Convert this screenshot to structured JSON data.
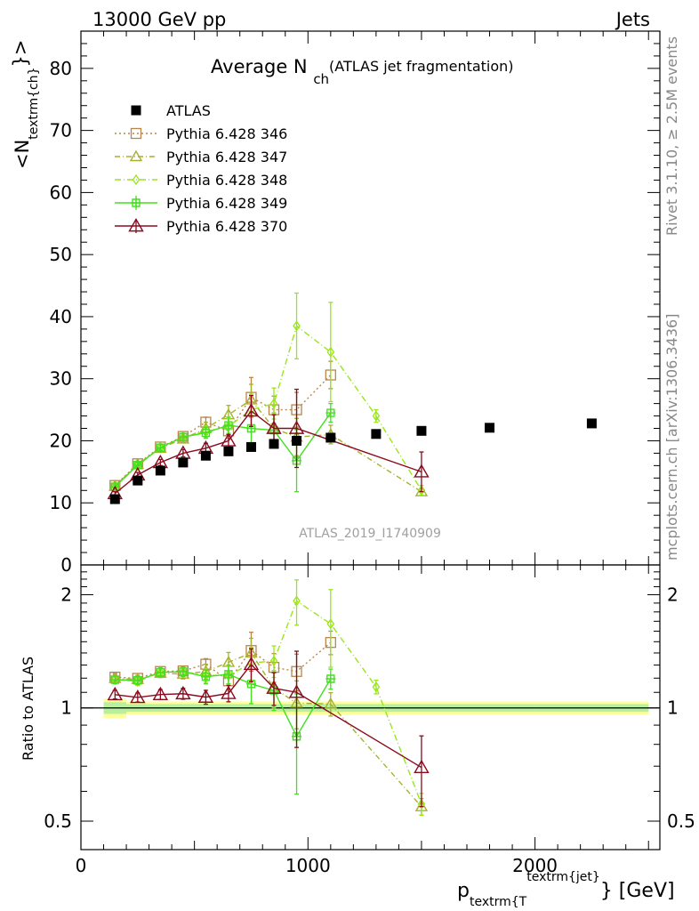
{
  "header": {
    "energy_label": "13000 GeV pp",
    "category_label": "Jets",
    "right_label_top": "Rivet 3.1.10, ≥ 2.5M events",
    "right_label_bottom": "mcplots.cern.ch [arXiv:1306.3436]",
    "analysis_id": "ATLAS_2019_I1740909"
  },
  "chart_data": {
    "type": "scatter",
    "title_main": "Average N",
    "title_sub": "ch",
    "title_note": "(ATLAS jet fragmentation)",
    "ylabel_main": "<N",
    "ylabel_sub": "textrm{ch}",
    "ylabel_end": "}>",
    "xlabel_main": "p",
    "xlabel_sub": "textrm{T",
    "xlabel_sup": "textrm{jet}",
    "xlabel_end": "} [GeV]",
    "ratio_ylabel": "Ratio to ATLAS",
    "xlim": [
      0,
      2550
    ],
    "ylim_top": [
      0,
      86
    ],
    "ylim_ratio": [
      0.42,
      2.4
    ],
    "ratio_log": true,
    "x_ticks": [
      0,
      1000,
      2000
    ],
    "y_ticks_top": [
      0,
      10,
      20,
      30,
      40,
      50,
      60,
      70,
      80
    ],
    "y_ticks_ratio": [
      0.5,
      1,
      2
    ],
    "x": [
      150,
      250,
      350,
      450,
      550,
      650,
      750,
      850,
      950,
      1100,
      1300,
      1500,
      1800,
      2250
    ],
    "data": {
      "name": "ATLAS",
      "color": "#000000",
      "values": [
        10.6,
        13.6,
        15.2,
        16.5,
        17.6,
        18.3,
        19.0,
        19.5,
        20.0,
        20.5,
        21.1,
        21.6,
        22.1,
        22.8
      ]
    },
    "ratio_band": [
      {
        "x0": 100,
        "x1": 200,
        "halfwidth": 0.06
      },
      {
        "x0": 200,
        "x1": 2000,
        "halfwidth": 0.04
      },
      {
        "x0": 2000,
        "x1": 2500,
        "halfwidth": 0.04
      }
    ],
    "series": [
      {
        "name": "Pythia 6.428 346",
        "color": "#b8864b",
        "marker": "square",
        "dash": "2,3",
        "x": [
          150,
          250,
          350,
          450,
          550,
          650,
          750,
          850,
          950,
          1100
        ],
        "values": [
          12.8,
          16.3,
          19.0,
          20.7,
          23.0,
          21.6,
          27.0,
          25.0,
          25.0,
          30.6
        ],
        "errors": [
          0.3,
          0.3,
          0.4,
          0.5,
          0.8,
          1.2,
          3.2,
          2.2,
          2.8,
          2.2
        ]
      },
      {
        "name": "Pythia 6.428 347",
        "color": "#a8b030",
        "marker": "triangle",
        "dash": "6,3,1,3",
        "x": [
          150,
          250,
          350,
          450,
          550,
          650,
          750,
          850,
          950,
          1100,
          1500
        ],
        "values": [
          12.7,
          16.2,
          18.8,
          20.3,
          22.0,
          24.2,
          26.6,
          22.0,
          20.6,
          21.0,
          11.8
        ],
        "errors": [
          0.3,
          0.4,
          0.5,
          0.6,
          1.0,
          1.5,
          2.5,
          2.5,
          3.0,
          1.5,
          0.6
        ]
      },
      {
        "name": "Pythia 6.428 348",
        "color": "#99e619",
        "marker": "diamond",
        "dash": "7,3,1,3",
        "x": [
          150,
          250,
          350,
          450,
          550,
          650,
          750,
          850,
          950,
          1100,
          1300,
          1500
        ],
        "values": [
          12.6,
          16.0,
          18.9,
          20.6,
          21.5,
          22.3,
          25.0,
          26.0,
          38.5,
          34.3,
          24.0,
          12.0
        ],
        "errors": [
          0.3,
          0.4,
          0.5,
          0.6,
          0.9,
          1.3,
          2.5,
          2.5,
          5.3,
          8.0,
          1.0,
          0.8
        ]
      },
      {
        "name": "Pythia 6.428 349",
        "color": "#44e020",
        "marker": "cross",
        "dash": "",
        "x": [
          150,
          250,
          350,
          450,
          550,
          650,
          750,
          850,
          950,
          1100
        ],
        "values": [
          12.6,
          16.1,
          18.9,
          20.6,
          21.3,
          22.5,
          22.0,
          21.7,
          16.8,
          24.5
        ],
        "errors": [
          0.3,
          0.4,
          0.5,
          0.6,
          0.9,
          1.3,
          2.5,
          2.5,
          5.0,
          1.5
        ]
      },
      {
        "name": "Pythia 6.428 370",
        "color": "#8b0a1e",
        "marker": "triangle-open",
        "dash": "",
        "x": [
          150,
          250,
          350,
          450,
          550,
          650,
          750,
          850,
          950,
          1500
        ],
        "values": [
          11.5,
          14.5,
          16.5,
          18.0,
          18.8,
          20.0,
          24.8,
          22.0,
          22.0,
          15.0
        ],
        "errors": [
          0.3,
          0.4,
          0.5,
          0.6,
          0.8,
          1.0,
          2.5,
          2.2,
          6.3,
          3.2
        ]
      }
    ]
  }
}
